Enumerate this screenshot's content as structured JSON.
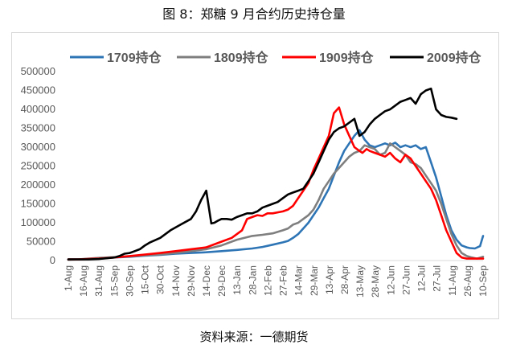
{
  "figure_title": "图 8：郑糖 9 月合约历史持仓量",
  "source_note": "资料来源：一德期货",
  "chart_data": {
    "type": "line",
    "title": "",
    "xlabel": "",
    "ylabel": "",
    "ylim": [
      0,
      500000
    ],
    "yticks": [
      0,
      50000,
      100000,
      150000,
      200000,
      250000,
      300000,
      350000,
      400000,
      450000,
      500000
    ],
    "ytick_labels": [
      "0",
      "50000",
      "100000",
      "150000",
      "200000",
      "250000",
      "300000",
      "350000",
      "400000",
      "450000",
      "500000"
    ],
    "x_tick_labels": [
      "1-Aug",
      "16-Aug",
      "31-Aug",
      "15-Sep",
      "30-Sep",
      "15-Oct",
      "30-Oct",
      "14-Nov",
      "29-Nov",
      "14-Dec",
      "29-Dec",
      "13-Jan",
      "28-Jan",
      "12-Feb",
      "27-Feb",
      "14-Mar",
      "29-Mar",
      "13-Apr",
      "28-Apr",
      "13-May",
      "28-May",
      "12-Jun",
      "27-Jun",
      "12-Jul",
      "27-Jul",
      "11-Aug",
      "26-Aug",
      "10-Sep"
    ],
    "x_unit": "days since 1-Aug (index of the daily axis)",
    "grid": false,
    "legend_position": "top",
    "series": [
      {
        "name": "1709持仓",
        "color": "#2E75B6",
        "x": [
          0,
          10,
          20,
          30,
          45,
          60,
          75,
          90,
          105,
          120,
          135,
          150,
          165,
          180,
          190,
          200,
          210,
          215,
          220,
          225,
          230,
          235,
          240,
          245,
          250,
          255,
          260,
          265,
          270,
          275,
          280,
          285,
          290,
          295,
          300,
          305,
          310,
          315,
          320,
          325,
          330,
          335,
          340,
          345,
          350,
          355,
          360,
          365,
          370,
          375,
          380,
          385,
          390,
          393,
          398,
          403,
          406
        ],
        "y": [
          3000,
          3000,
          4000,
          6000,
          8000,
          10000,
          13000,
          15000,
          18000,
          20000,
          22000,
          25000,
          28000,
          32000,
          36000,
          42000,
          48000,
          52000,
          60000,
          70000,
          85000,
          100000,
          120000,
          140000,
          165000,
          190000,
          225000,
          260000,
          290000,
          310000,
          330000,
          345000,
          320000,
          305000,
          300000,
          305000,
          310000,
          305000,
          312000,
          300000,
          305000,
          300000,
          305000,
          295000,
          300000,
          260000,
          220000,
          170000,
          120000,
          80000,
          55000,
          40000,
          35000,
          33000,
          32000,
          38000,
          65000
        ]
      },
      {
        "name": "1809持仓",
        "color": "#7F7F7F",
        "x": [
          0,
          10,
          20,
          30,
          45,
          60,
          75,
          90,
          105,
          120,
          135,
          150,
          165,
          180,
          190,
          200,
          210,
          215,
          220,
          225,
          230,
          235,
          240,
          245,
          250,
          255,
          260,
          265,
          270,
          275,
          280,
          285,
          290,
          295,
          300,
          305,
          310,
          315,
          320,
          325,
          330,
          335,
          340,
          345,
          350,
          355,
          360,
          365,
          370,
          375,
          380,
          385,
          390,
          395,
          400,
          406
        ],
        "y": [
          2000,
          3000,
          5000,
          7000,
          9000,
          11000,
          14000,
          16000,
          20000,
          25000,
          30000,
          40000,
          55000,
          65000,
          68000,
          72000,
          80000,
          85000,
          95000,
          100000,
          110000,
          120000,
          135000,
          160000,
          190000,
          210000,
          230000,
          245000,
          260000,
          275000,
          285000,
          290000,
          305000,
          300000,
          295000,
          280000,
          285000,
          310000,
          300000,
          290000,
          280000,
          260000,
          255000,
          245000,
          225000,
          205000,
          185000,
          150000,
          110000,
          70000,
          40000,
          20000,
          12000,
          8000,
          5000,
          10000
        ]
      },
      {
        "name": "1909持仓",
        "color": "#FF0000",
        "x": [
          0,
          10,
          20,
          30,
          45,
          60,
          75,
          90,
          105,
          120,
          135,
          150,
          160,
          170,
          175,
          180,
          185,
          190,
          195,
          200,
          210,
          215,
          220,
          225,
          230,
          235,
          240,
          245,
          250,
          255,
          260,
          265,
          270,
          275,
          280,
          285,
          288,
          292,
          295,
          300,
          305,
          310,
          315,
          320,
          325,
          330,
          335,
          340,
          345,
          350,
          355,
          360,
          365,
          370,
          375,
          380,
          385,
          390,
          395,
          400,
          406
        ],
        "y": [
          3000,
          3000,
          4000,
          5000,
          8000,
          12000,
          16000,
          20000,
          25000,
          30000,
          35000,
          50000,
          60000,
          80000,
          110000,
          115000,
          120000,
          118000,
          125000,
          125000,
          130000,
          135000,
          145000,
          165000,
          185000,
          205000,
          240000,
          270000,
          300000,
          330000,
          390000,
          405000,
          360000,
          330000,
          300000,
          290000,
          285000,
          295000,
          290000,
          285000,
          280000,
          275000,
          285000,
          270000,
          260000,
          280000,
          270000,
          250000,
          230000,
          210000,
          190000,
          160000,
          120000,
          80000,
          50000,
          20000,
          8000,
          5000,
          5000,
          5000,
          5000
        ]
      },
      {
        "name": "2009持仓",
        "color": "#000000",
        "x": [
          0,
          10,
          20,
          30,
          45,
          50,
          55,
          60,
          65,
          70,
          75,
          80,
          90,
          100,
          110,
          120,
          125,
          130,
          135,
          140,
          143,
          146,
          150,
          155,
          160,
          165,
          170,
          175,
          180,
          185,
          190,
          195,
          200,
          205,
          210,
          215,
          220,
          225,
          230,
          235,
          240,
          245,
          250,
          255,
          260,
          265,
          270,
          275,
          280,
          285,
          290,
          295,
          300,
          305,
          310,
          315,
          320,
          325,
          330,
          335,
          340,
          345,
          350,
          355,
          360,
          365,
          370,
          375,
          380
        ],
        "y": [
          3000,
          3000,
          3000,
          4000,
          8000,
          12000,
          18000,
          20000,
          25000,
          30000,
          40000,
          48000,
          60000,
          80000,
          95000,
          110000,
          130000,
          160000,
          185000,
          98000,
          100000,
          105000,
          110000,
          110000,
          108000,
          115000,
          120000,
          125000,
          125000,
          130000,
          140000,
          145000,
          150000,
          155000,
          165000,
          175000,
          180000,
          185000,
          190000,
          210000,
          230000,
          260000,
          290000,
          320000,
          340000,
          350000,
          355000,
          365000,
          375000,
          330000,
          340000,
          360000,
          375000,
          385000,
          395000,
          400000,
          410000,
          420000,
          425000,
          430000,
          415000,
          440000,
          450000,
          455000,
          400000,
          385000,
          380000,
          378000,
          375000
        ]
      }
    ]
  }
}
